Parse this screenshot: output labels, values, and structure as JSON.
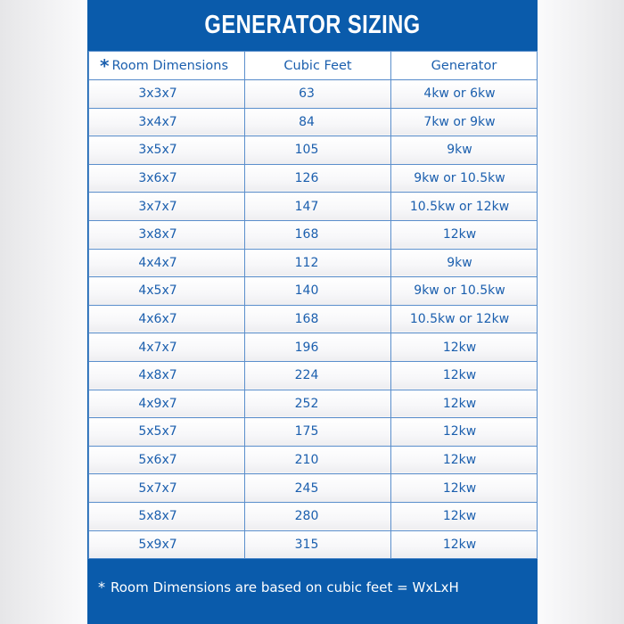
{
  "title": "GENERATOR SIZING",
  "headers": {
    "asterisk": "*",
    "dimensions": "Room Dimensions",
    "cubic_feet": "Cubic Feet",
    "generator": "Generator"
  },
  "rows": [
    {
      "dim": "3x3x7",
      "cf": "63",
      "gen": "4kw or 6kw"
    },
    {
      "dim": "3x4x7",
      "cf": "84",
      "gen": "7kw or 9kw"
    },
    {
      "dim": "3x5x7",
      "cf": "105",
      "gen": "9kw"
    },
    {
      "dim": "3x6x7",
      "cf": "126",
      "gen": "9kw or 10.5kw"
    },
    {
      "dim": "3x7x7",
      "cf": "147",
      "gen": "10.5kw or 12kw"
    },
    {
      "dim": "3x8x7",
      "cf": "168",
      "gen": "12kw"
    },
    {
      "dim": "4x4x7",
      "cf": "112",
      "gen": "9kw"
    },
    {
      "dim": "4x5x7",
      "cf": "140",
      "gen": "9kw or 10.5kw"
    },
    {
      "dim": "4x6x7",
      "cf": "168",
      "gen": "10.5kw or 12kw"
    },
    {
      "dim": "4x7x7",
      "cf": "196",
      "gen": "12kw"
    },
    {
      "dim": "4x8x7",
      "cf": "224",
      "gen": "12kw"
    },
    {
      "dim": "4x9x7",
      "cf": "252",
      "gen": "12kw"
    },
    {
      "dim": "5x5x7",
      "cf": "175",
      "gen": "12kw"
    },
    {
      "dim": "5x6x7",
      "cf": "210",
      "gen": "12kw"
    },
    {
      "dim": "5x7x7",
      "cf": "245",
      "gen": "12kw"
    },
    {
      "dim": "5x8x7",
      "cf": "280",
      "gen": "12kw"
    },
    {
      "dim": "5x9x7",
      "cf": "315",
      "gen": "12kw"
    }
  ],
  "footnote": {
    "asterisk": "*",
    "text": "Room Dimensions are based on cubic feet = WxLxH"
  },
  "colors": {
    "brand_blue": "#0a5bab",
    "text_blue": "#1b5fae"
  }
}
